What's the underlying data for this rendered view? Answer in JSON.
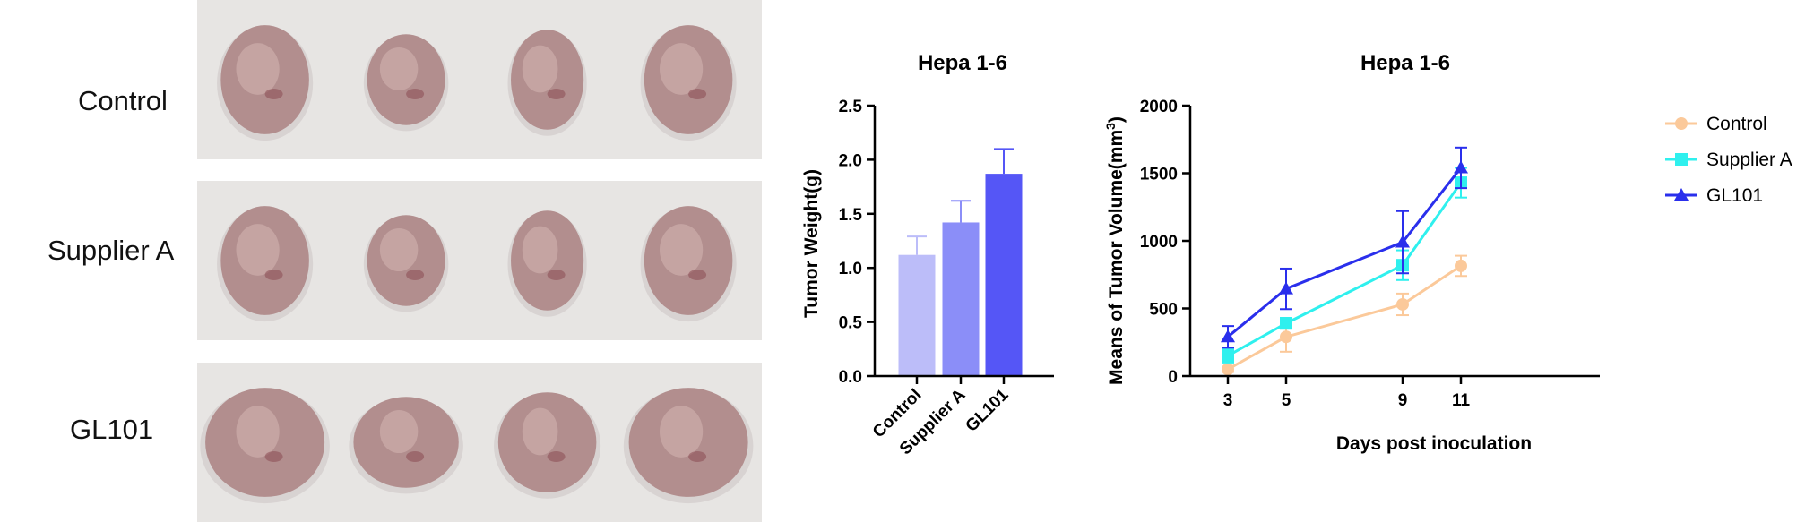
{
  "photo_panel": {
    "rows": [
      {
        "label": "Control",
        "tumor_count": 4
      },
      {
        "label": "Supplier A",
        "tumor_count": 4
      },
      {
        "label": "GL101",
        "tumor_count": 4
      }
    ],
    "tumor_color": "#b28e8e",
    "background_color": "#e7e5e3"
  },
  "chart_data": [
    {
      "type": "bar",
      "title": "Hepa 1-6",
      "ylabel": "Tumor Weight(g)",
      "xlabel": "",
      "categories": [
        "Control",
        "Supplier A",
        "GL101"
      ],
      "values": [
        1.12,
        1.42,
        1.87
      ],
      "errors": [
        0.17,
        0.2,
        0.23
      ],
      "colors": [
        "#bcbdf9",
        "#8b8ef8",
        "#5556f6"
      ],
      "ylim": [
        0,
        2.5
      ],
      "yticks": [
        "0.0",
        "0.5",
        "1.0",
        "1.5",
        "2.0",
        "2.5"
      ]
    },
    {
      "type": "line",
      "title": "Hepa 1-6",
      "xlabel": "Days post inoculation",
      "ylabel_prefix": "Means of Tumor Volume(mm",
      "ylabel_sup": "3",
      "ylabel_suffix": ")",
      "x": [
        3,
        5,
        9,
        11
      ],
      "ylim": [
        0,
        2000
      ],
      "yticks": [
        "0",
        "500",
        "1000",
        "1500",
        "2000"
      ],
      "legend_position": "right",
      "series": [
        {
          "name": "Control",
          "color": "#fbc99a",
          "marker": "circle",
          "values": [
            50,
            290,
            530,
            815
          ],
          "errors": [
            20,
            110,
            80,
            75
          ]
        },
        {
          "name": "Supplier A",
          "color": "#2ff0ee",
          "marker": "square",
          "values": [
            150,
            390,
            820,
            1430
          ],
          "errors": [
            50,
            40,
            110,
            110
          ]
        },
        {
          "name": "GL101",
          "color": "#2a2fec",
          "marker": "triangle",
          "values": [
            290,
            645,
            990,
            1540
          ],
          "errors": [
            80,
            150,
            230,
            150
          ]
        }
      ]
    }
  ]
}
